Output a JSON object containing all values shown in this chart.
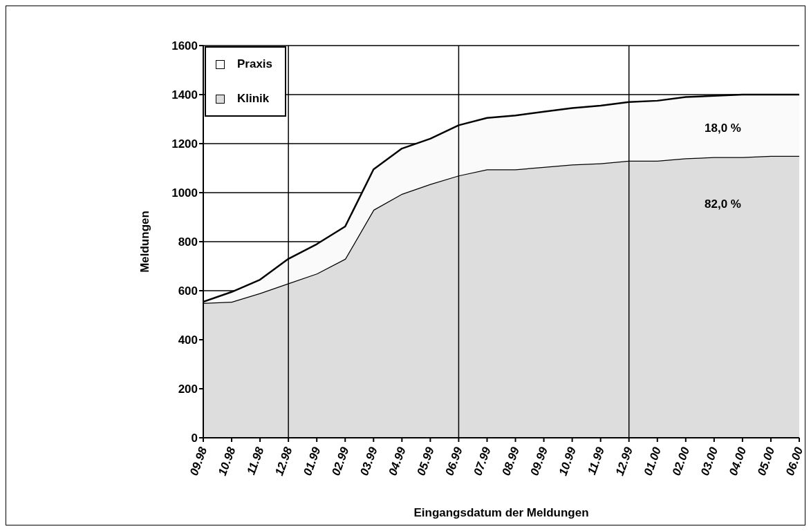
{
  "chart_data": {
    "type": "area",
    "stacked": true,
    "xlabel": "Eingangsdatum der Meldungen",
    "ylabel": "Meldungen",
    "categories": [
      "09.98",
      "10.98",
      "11.98",
      "12.98",
      "01.99",
      "02.99",
      "03.99",
      "04.99",
      "05.99",
      "06.99",
      "07.99",
      "08.99",
      "09.99",
      "10.99",
      "11.99",
      "12.99",
      "01.00",
      "02.00",
      "03.00",
      "04.00",
      "05.00",
      "06.00"
    ],
    "series": [
      {
        "name": "Klinik",
        "color": "#dddddd",
        "values": [
          550,
          555,
          590,
          630,
          670,
          730,
          930,
          995,
          1035,
          1070,
          1095,
          1095,
          1105,
          1115,
          1120,
          1130,
          1130,
          1140,
          1145,
          1145,
          1150,
          1150
        ]
      },
      {
        "name": "Praxis",
        "color": "#fafafa",
        "values": [
          5,
          40,
          55,
          100,
          120,
          132,
          165,
          185,
          185,
          205,
          210,
          220,
          225,
          230,
          235,
          240,
          245,
          250,
          250,
          255,
          250,
          250
        ]
      }
    ],
    "ylim": [
      0,
      1600
    ],
    "yticks": [
      0,
      200,
      400,
      600,
      800,
      1000,
      1200,
      1400,
      1600
    ],
    "grid": "y",
    "legend": "top left",
    "ref_lines": [
      {
        "axis": "x",
        "value": "12.98"
      },
      {
        "axis": "x",
        "value": "06.99"
      },
      {
        "axis": "x",
        "value": "12.99"
      }
    ],
    "annotations": [
      "18,0 %",
      "82,0 %"
    ]
  }
}
